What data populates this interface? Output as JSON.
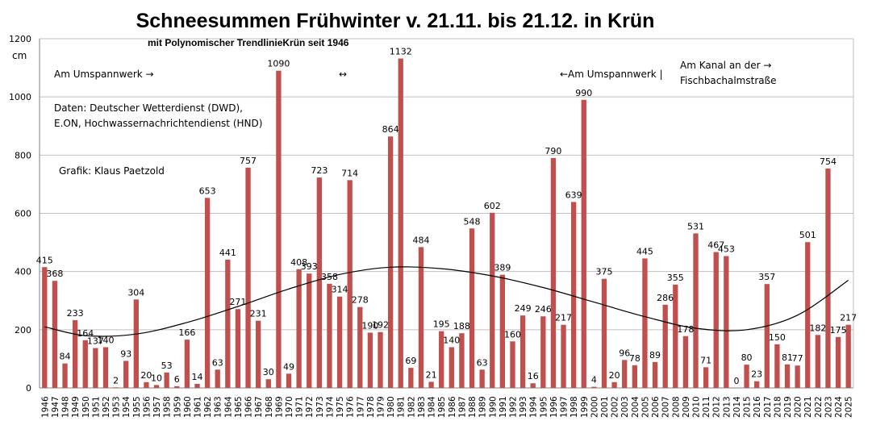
{
  "chart_data": {
    "type": "bar",
    "title": "Schneesummen  Frühwinter v. 21.11. bis 21.12.  in Krün",
    "subtitle": "mit Polynomischer TrendlinieKrün seit 1946",
    "ylabel": "cm",
    "ylim": [
      0,
      1200
    ],
    "yticks": [
      0,
      200,
      400,
      600,
      800,
      1000,
      1200
    ],
    "grid": true,
    "bar_color": "#c0504d",
    "trendline_color": "#000000",
    "categories": [
      "1946",
      "1947",
      "1948",
      "1949",
      "1950",
      "1951",
      "1952",
      "1953",
      "1954",
      "1955",
      "1956",
      "1957",
      "1958",
      "1959",
      "1960",
      "1961",
      "1962",
      "1963",
      "1964",
      "1965",
      "1966",
      "1967",
      "1968",
      "1969",
      "1970",
      "1971",
      "1972",
      "1973",
      "1974",
      "1975",
      "1976",
      "1977",
      "1978",
      "1979",
      "1980",
      "1981",
      "1982",
      "1983",
      "1984",
      "1985",
      "1986",
      "1987",
      "1988",
      "1989",
      "1990",
      "1991",
      "1992",
      "1993",
      "1994",
      "1995",
      "1996",
      "1997",
      "1998",
      "1999",
      "2000",
      "2001",
      "2002",
      "2003",
      "2004",
      "2005",
      "2006",
      "2007",
      "2008",
      "2009",
      "2010",
      "2011",
      "2012",
      "2013",
      "2014",
      "2015",
      "2016",
      "2017",
      "2018",
      "2019",
      "2020",
      "2021",
      "2022",
      "2023",
      "2024",
      "2025"
    ],
    "values": [
      415,
      368,
      84,
      233,
      164,
      137,
      140,
      2,
      93,
      304,
      20,
      10,
      53,
      6,
      166,
      14,
      653,
      63,
      441,
      271,
      757,
      231,
      30,
      1090,
      49,
      408,
      393,
      723,
      358,
      314,
      714,
      278,
      190,
      192,
      864,
      1132,
      69,
      484,
      21,
      195,
      140,
      188,
      548,
      63,
      602,
      389,
      160,
      249,
      16,
      246,
      790,
      217,
      639,
      990,
      4,
      375,
      20,
      96,
      78,
      445,
      89,
      286,
      355,
      178,
      531,
      71,
      467,
      453,
      0,
      80,
      23,
      357,
      150,
      81,
      77,
      501,
      182,
      754,
      175,
      217
    ],
    "trendline": {
      "x": [
        "1946",
        "1950",
        "1955",
        "1960",
        "1965",
        "1970",
        "1975",
        "1980",
        "1985",
        "1990",
        "1995",
        "2000",
        "2005",
        "2010",
        "2015",
        "2020",
        "2025"
      ],
      "y": [
        210,
        180,
        185,
        225,
        280,
        340,
        390,
        415,
        410,
        385,
        345,
        295,
        245,
        205,
        200,
        250,
        370
      ]
    },
    "annotations": [
      "Am Umspannwerk →",
      "↔",
      "←Am Umspannwerk  |",
      "Am Kanal an der →",
      "Fischbachalmstraße",
      "Daten: Deutscher Wetterdienst (DWD),",
      "E.ON, Hochwassernachrichtendienst (HND)",
      "Grafik: Klaus Paetzold"
    ]
  }
}
